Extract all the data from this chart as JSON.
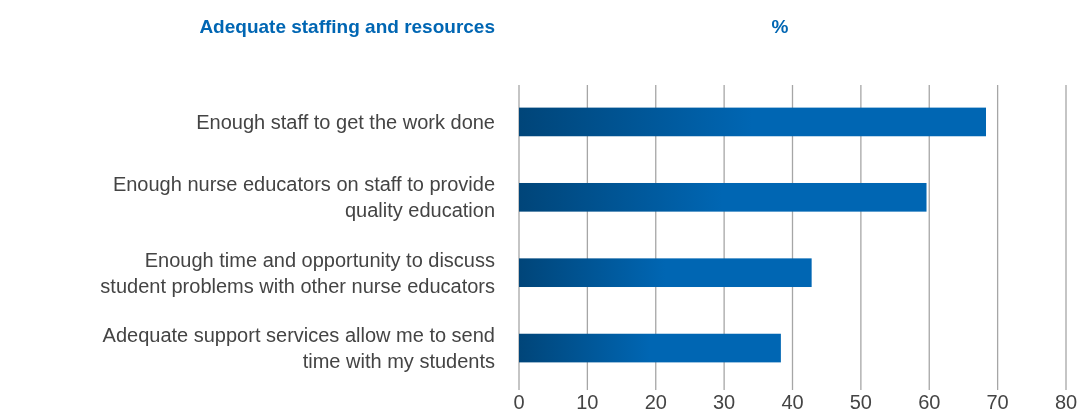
{
  "chart_data": {
    "type": "bar",
    "orientation": "horizontal",
    "title": "Adequate staffing and resources",
    "xlabel": "%",
    "categories": [
      "Enough staff to get the work done",
      "Enough nurse educators on staff to provide quality education",
      "Enough time and opportunity to discuss student problems with other nurse educators",
      "Adequate support services allow me to send time with my students"
    ],
    "values": [
      68.3,
      59.6,
      42.8,
      38.3
    ],
    "color": "#0066b3",
    "xlim": [
      0,
      80
    ],
    "xticks": [
      0,
      10,
      20,
      30,
      40,
      50,
      60,
      70,
      80
    ],
    "grid": "x"
  }
}
